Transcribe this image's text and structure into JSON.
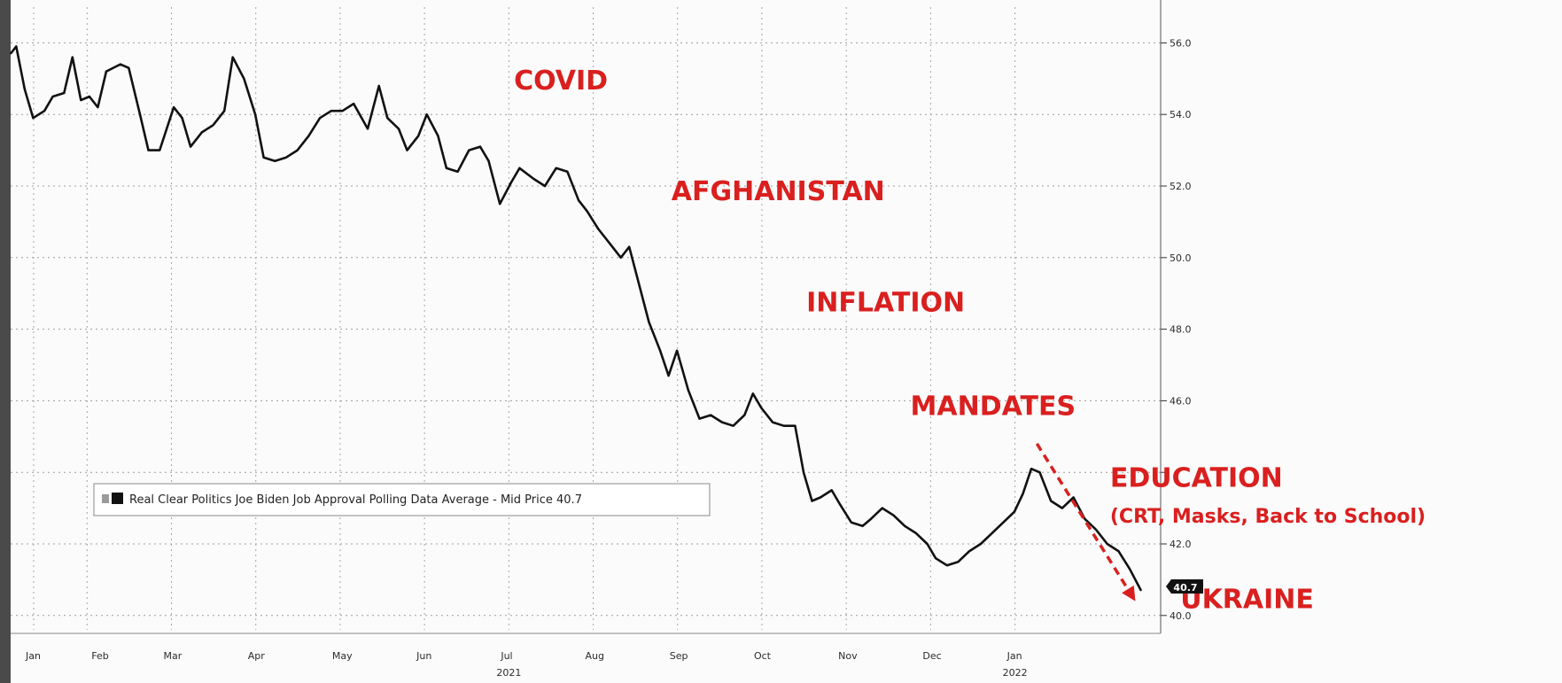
{
  "chart_data": {
    "type": "line",
    "title": "",
    "xlabel": "",
    "ylabel": "",
    "ylim": [
      39.5,
      57.0
    ],
    "yticks": [
      40.0,
      42.0,
      44.0,
      46.0,
      48.0,
      50.0,
      52.0,
      54.0,
      56.0
    ],
    "ytick_labels": [
      "40.0",
      "42.0",
      "",
      "46.0",
      "48.0",
      "50.0",
      "52.0",
      "54.0",
      "56.0"
    ],
    "x_month_labels": [
      "Jan",
      "Feb",
      "Mar",
      "Apr",
      "May",
      "Jun",
      "Jul",
      "Aug",
      "Sep",
      "Oct",
      "Nov",
      "Dec",
      "Jan"
    ],
    "x_year_labels": [
      "2021",
      "2022"
    ],
    "grid": true,
    "legend_placement": "lower-left",
    "legend_text": "Real Clear Politics Joe Biden Job Approval Polling Data Average - Mid Price 40.7",
    "last_value_label": "40.7",
    "series": [
      {
        "color": "#111111",
        "points": [
          [
            "2021-01-20",
            55.7
          ],
          [
            "2021-01-22",
            55.9
          ],
          [
            "2021-01-25",
            54.7
          ],
          [
            "2021-01-28",
            53.9
          ],
          [
            "2021-02-01",
            54.1
          ],
          [
            "2021-02-04",
            54.5
          ],
          [
            "2021-02-08",
            54.6
          ],
          [
            "2021-02-11",
            55.6
          ],
          [
            "2021-02-14",
            54.4
          ],
          [
            "2021-02-17",
            54.5
          ],
          [
            "2021-02-20",
            54.2
          ],
          [
            "2021-02-23",
            55.2
          ],
          [
            "2021-02-28",
            55.4
          ],
          [
            "2021-03-03",
            55.3
          ],
          [
            "2021-03-07",
            54.0
          ],
          [
            "2021-03-10",
            53.0
          ],
          [
            "2021-03-14",
            53.0
          ],
          [
            "2021-03-19",
            54.2
          ],
          [
            "2021-03-22",
            53.9
          ],
          [
            "2021-03-25",
            53.1
          ],
          [
            "2021-03-29",
            53.5
          ],
          [
            "2021-04-02",
            53.7
          ],
          [
            "2021-04-06",
            54.1
          ],
          [
            "2021-04-09",
            55.6
          ],
          [
            "2021-04-13",
            55.0
          ],
          [
            "2021-04-17",
            54.0
          ],
          [
            "2021-04-20",
            52.8
          ],
          [
            "2021-04-24",
            52.7
          ],
          [
            "2021-04-28",
            52.8
          ],
          [
            "2021-05-02",
            53.0
          ],
          [
            "2021-05-06",
            53.4
          ],
          [
            "2021-05-10",
            53.9
          ],
          [
            "2021-05-14",
            54.1
          ],
          [
            "2021-05-18",
            54.1
          ],
          [
            "2021-05-22",
            54.3
          ],
          [
            "2021-05-27",
            53.6
          ],
          [
            "2021-05-31",
            54.8
          ],
          [
            "2021-06-03",
            53.9
          ],
          [
            "2021-06-07",
            53.6
          ],
          [
            "2021-06-10",
            53.0
          ],
          [
            "2021-06-14",
            53.4
          ],
          [
            "2021-06-17",
            54.0
          ],
          [
            "2021-06-21",
            53.4
          ],
          [
            "2021-06-24",
            52.5
          ],
          [
            "2021-06-28",
            52.4
          ],
          [
            "2021-07-02",
            53.0
          ],
          [
            "2021-07-06",
            53.1
          ],
          [
            "2021-07-09",
            52.7
          ],
          [
            "2021-07-13",
            51.5
          ],
          [
            "2021-07-17",
            52.1
          ],
          [
            "2021-07-20",
            52.5
          ],
          [
            "2021-07-25",
            52.2
          ],
          [
            "2021-07-29",
            52.0
          ],
          [
            "2021-08-02",
            52.5
          ],
          [
            "2021-08-06",
            52.4
          ],
          [
            "2021-08-10",
            51.6
          ],
          [
            "2021-08-13",
            51.3
          ],
          [
            "2021-08-17",
            50.8
          ],
          [
            "2021-08-21",
            50.4
          ],
          [
            "2021-08-25",
            50.0
          ],
          [
            "2021-08-28",
            50.3
          ],
          [
            "2021-09-01",
            49.1
          ],
          [
            "2021-09-04",
            48.2
          ],
          [
            "2021-09-08",
            47.4
          ],
          [
            "2021-09-11",
            46.7
          ],
          [
            "2021-09-14",
            47.4
          ],
          [
            "2021-09-18",
            46.3
          ],
          [
            "2021-09-22",
            45.5
          ],
          [
            "2021-09-26",
            45.6
          ],
          [
            "2021-09-30",
            45.4
          ],
          [
            "2021-10-04",
            45.3
          ],
          [
            "2021-10-08",
            45.6
          ],
          [
            "2021-10-11",
            46.2
          ],
          [
            "2021-10-14",
            45.8
          ],
          [
            "2021-10-18",
            45.4
          ],
          [
            "2021-10-22",
            45.3
          ],
          [
            "2021-10-26",
            45.3
          ],
          [
            "2021-10-29",
            44.0
          ],
          [
            "2021-11-01",
            43.2
          ],
          [
            "2021-11-04",
            43.3
          ],
          [
            "2021-11-08",
            43.5
          ],
          [
            "2021-11-11",
            43.1
          ],
          [
            "2021-11-15",
            42.6
          ],
          [
            "2021-11-19",
            42.5
          ],
          [
            "2021-11-22",
            42.7
          ],
          [
            "2021-11-26",
            43.0
          ],
          [
            "2021-11-30",
            42.8
          ],
          [
            "2021-12-04",
            42.5
          ],
          [
            "2021-12-08",
            42.3
          ],
          [
            "2021-12-12",
            42.0
          ],
          [
            "2021-12-15",
            41.6
          ],
          [
            "2021-12-19",
            41.4
          ],
          [
            "2021-12-23",
            41.5
          ],
          [
            "2021-12-27",
            41.8
          ],
          [
            "2021-12-31",
            42.0
          ],
          [
            "2022-01-04",
            42.3
          ],
          [
            "2022-01-08",
            42.6
          ],
          [
            "2022-01-12",
            42.9
          ],
          [
            "2022-01-15",
            43.4
          ],
          [
            "2022-01-18",
            44.1
          ],
          [
            "2022-01-21",
            44.0
          ],
          [
            "2022-01-25",
            43.2
          ],
          [
            "2022-01-29",
            43.0
          ],
          [
            "2022-02-02",
            43.3
          ],
          [
            "2022-02-06",
            42.7
          ],
          [
            "2022-02-10",
            42.4
          ],
          [
            "2022-02-14",
            42.0
          ],
          [
            "2022-02-18",
            41.8
          ],
          [
            "2022-02-22",
            41.3
          ],
          [
            "2022-02-26",
            40.7
          ]
        ]
      }
    ],
    "annotations": [
      {
        "text": "COVID",
        "at": [
          "2021-07-18",
          54.7
        ],
        "size": 30
      },
      {
        "text": "AFGHANISTAN",
        "at": [
          "2021-09-12",
          51.6
        ],
        "size": 30
      },
      {
        "text": "INFLATION",
        "at": [
          "2021-10-30",
          48.5
        ],
        "size": 30
      },
      {
        "text": "MANDATES",
        "at": [
          "2021-12-06",
          45.6
        ],
        "size": 30
      },
      {
        "text": "EDUCATION",
        "at": [
          "2022-02-15",
          43.6
        ],
        "size": 30
      },
      {
        "text": "(CRT, Masks, Back to School)",
        "at": [
          "2022-02-15",
          42.6
        ],
        "size": 22
      },
      {
        "text": "UKRAINE",
        "at": [
          "2022-03-12",
          40.2
        ],
        "size": 30
      }
    ],
    "trend_arrow": {
      "from": [
        "2022-01-20",
        44.8
      ],
      "to": [
        "2022-02-24",
        40.4
      ],
      "color": "#d9201f"
    }
  }
}
